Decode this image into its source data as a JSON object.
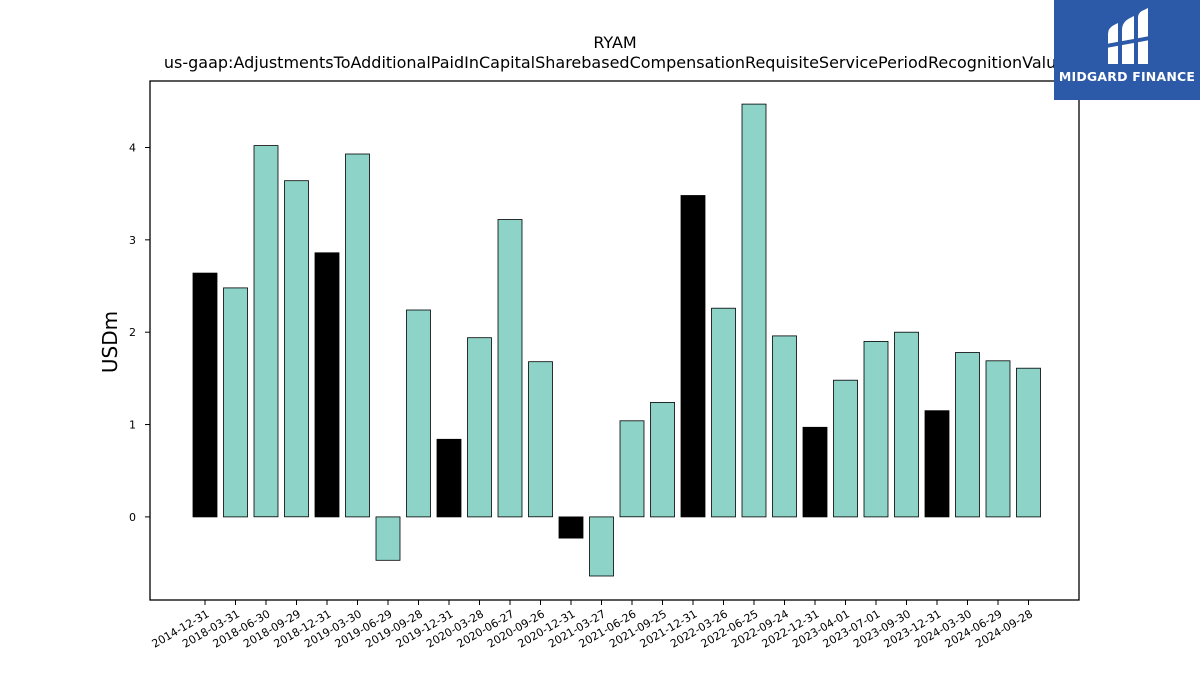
{
  "chart_data": {
    "type": "bar",
    "title": "RYAM",
    "subtitle": "us-gaap:AdjustmentsToAdditionalPaidInCapitalSharebasedCompensationRequisiteServicePeriodRecognitionValue",
    "xlabel": "",
    "ylabel": "USDm",
    "ylim": [
      -0.9,
      4.72
    ],
    "yticks": [
      0,
      1,
      2,
      3,
      4
    ],
    "grid": false,
    "categories": [
      "2014-12-31",
      "2018-03-31",
      "2018-06-30",
      "2018-09-29",
      "2018-12-31",
      "2019-03-30",
      "2019-06-29",
      "2019-09-28",
      "2019-12-31",
      "2020-03-28",
      "2020-06-27",
      "2020-09-26",
      "2020-12-31",
      "2021-03-27",
      "2021-06-26",
      "2021-09-25",
      "2021-12-31",
      "2022-03-26",
      "2022-06-25",
      "2022-09-24",
      "2022-12-31",
      "2023-04-01",
      "2023-07-01",
      "2023-09-30",
      "2023-12-31",
      "2024-03-30",
      "2024-06-29",
      "2024-09-28"
    ],
    "values": [
      2.64,
      2.48,
      4.02,
      3.64,
      2.86,
      3.93,
      -0.47,
      2.24,
      0.84,
      1.94,
      3.22,
      1.68,
      -0.23,
      -0.64,
      1.04,
      1.24,
      3.48,
      2.26,
      4.47,
      1.96,
      0.97,
      1.48,
      1.9,
      2.0,
      1.15,
      1.78,
      1.69,
      1.61
    ],
    "highlight": [
      true,
      false,
      false,
      false,
      true,
      false,
      false,
      false,
      true,
      false,
      false,
      false,
      true,
      false,
      false,
      false,
      true,
      false,
      false,
      false,
      true,
      false,
      false,
      false,
      true,
      false,
      false,
      false
    ],
    "colors": {
      "normal": "#8dd3c7",
      "highlight": "#000000",
      "edge": "#000000"
    }
  },
  "logo": {
    "text": "MIDGARD FINANCE",
    "background": "#2d5aa8"
  }
}
